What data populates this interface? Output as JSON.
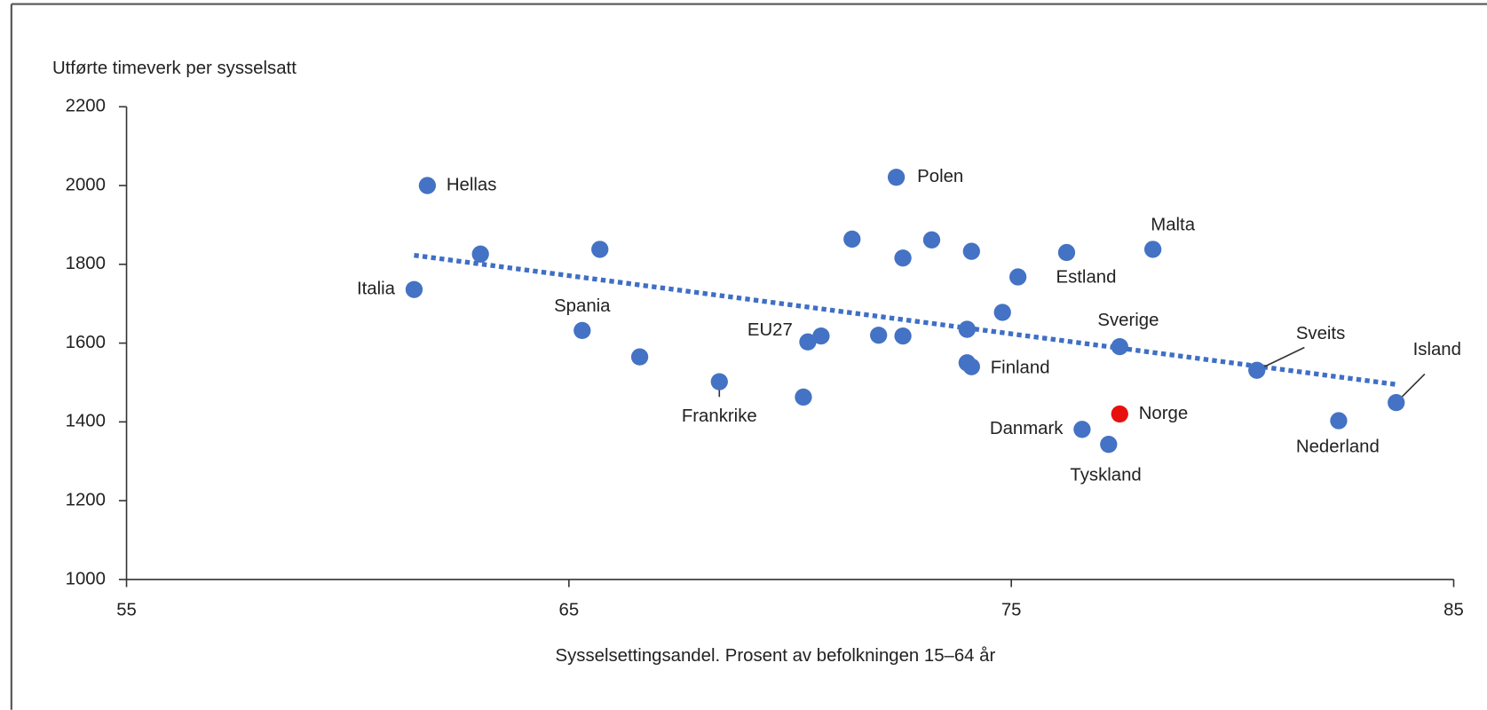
{
  "chart_data": {
    "type": "scatter",
    "y_axis_label": "Utførte timeverk per sysselsatt",
    "x_axis_label": "Sysselsettingsandel. Prosent av befolkningen 15–64 år",
    "xlim": [
      55,
      85
    ],
    "xticks": [
      55,
      65,
      75,
      85
    ],
    "ylim": [
      1000,
      2200
    ],
    "yticks": [
      1000,
      1200,
      1400,
      1600,
      1800,
      2000,
      2200
    ],
    "grid": false,
    "labels": [
      "Hellas",
      null,
      "Italia",
      null,
      "Spania",
      null,
      "Frankrike",
      null,
      "EU27",
      null,
      null,
      null,
      "Polen",
      null,
      null,
      null,
      null,
      null,
      "Finland",
      null,
      null,
      "Estland",
      null,
      "Danmark",
      "Tyskland",
      "Norge",
      "Sverige",
      "Malta",
      "Sveits",
      "Nederland",
      "Island"
    ],
    "x": [
      61.8,
      63.0,
      61.5,
      65.7,
      65.3,
      66.6,
      68.4,
      70.3,
      70.4,
      70.7,
      71.4,
      72.0,
      72.4,
      72.55,
      72.55,
      73.2,
      74.0,
      74.0,
      74.1,
      74.1,
      74.8,
      75.15,
      76.25,
      76.6,
      77.2,
      77.45,
      77.45,
      78.2,
      80.55,
      82.4,
      83.7
    ],
    "values": [
      2000,
      1826,
      1736,
      1838,
      1632,
      1565,
      1502,
      1463,
      1603,
      1618,
      1864,
      1620,
      2021,
      1816,
      1618,
      1862,
      1635,
      1550,
      1540,
      1833,
      1678,
      1768,
      1830,
      1381,
      1343,
      1420,
      1591,
      1838,
      1531,
      1403,
      1449
    ],
    "colors": [
      "#4472c4",
      "#4472c4",
      "#4472c4",
      "#4472c4",
      "#4472c4",
      "#4472c4",
      "#4472c4",
      "#4472c4",
      "#4472c4",
      "#4472c4",
      "#4472c4",
      "#4472c4",
      "#4472c4",
      "#4472c4",
      "#4472c4",
      "#4472c4",
      "#4472c4",
      "#4472c4",
      "#4472c4",
      "#4472c4",
      "#4472c4",
      "#4472c4",
      "#4472c4",
      "#4472c4",
      "#4472c4",
      "#e8100f",
      "#4472c4",
      "#4472c4",
      "#4472c4",
      "#4472c4",
      "#4472c4"
    ],
    "trend": {
      "x": [
        61.5,
        83.7
      ],
      "values": [
        1823,
        1495
      ],
      "color": "#3f6fc5"
    }
  }
}
